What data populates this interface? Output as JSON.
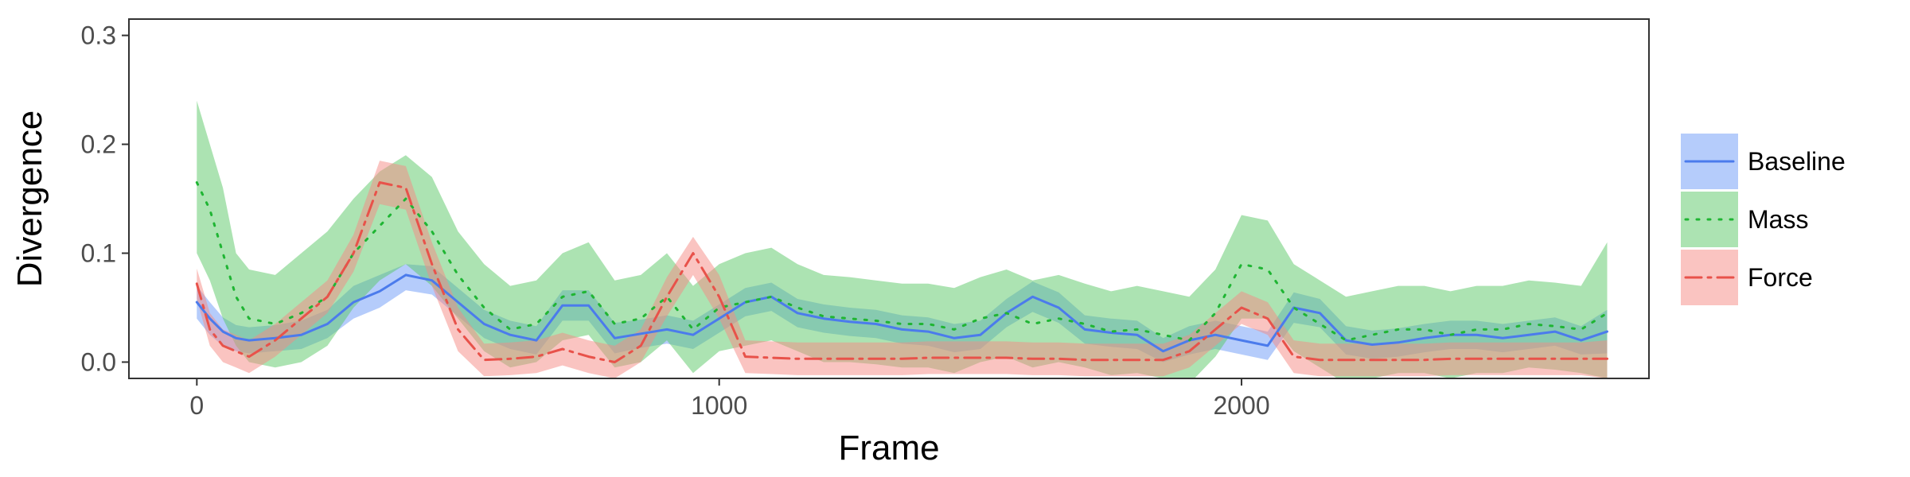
{
  "chart_data": {
    "type": "line",
    "xlabel": "Frame",
    "ylabel": "Divergence",
    "xlim": [
      -130,
      2780
    ],
    "ylim": [
      -0.015,
      0.315
    ],
    "x_ticks": [
      0,
      1000,
      2000
    ],
    "x_tick_labels": [
      "0",
      "1000",
      "2000"
    ],
    "y_ticks": [
      0.0,
      0.1,
      0.2,
      0.3
    ],
    "y_tick_labels": [
      "0.0",
      "0.1",
      "0.2",
      "0.3"
    ],
    "grid": false,
    "legend_position": "right",
    "x": [
      0,
      25,
      50,
      75,
      100,
      150,
      200,
      250,
      300,
      350,
      400,
      450,
      500,
      550,
      600,
      650,
      700,
      750,
      800,
      850,
      900,
      950,
      1000,
      1050,
      1100,
      1150,
      1200,
      1250,
      1300,
      1350,
      1400,
      1450,
      1500,
      1550,
      1600,
      1650,
      1700,
      1750,
      1800,
      1850,
      1900,
      1950,
      2000,
      2050,
      2100,
      2150,
      2200,
      2250,
      2300,
      2350,
      2400,
      2450,
      2500,
      2550,
      2600,
      2650,
      2700
    ],
    "series": [
      {
        "name": "Baseline",
        "color": "#4b7bec",
        "band_color": "#6c99f7",
        "line_style": "solid",
        "values": [
          0.055,
          0.04,
          0.028,
          0.022,
          0.02,
          0.022,
          0.025,
          0.035,
          0.055,
          0.065,
          0.08,
          0.075,
          0.055,
          0.035,
          0.025,
          0.02,
          0.052,
          0.052,
          0.022,
          0.026,
          0.03,
          0.025,
          0.04,
          0.055,
          0.06,
          0.045,
          0.04,
          0.037,
          0.035,
          0.03,
          0.028,
          0.022,
          0.025,
          0.045,
          0.06,
          0.05,
          0.03,
          0.027,
          0.025,
          0.01,
          0.02,
          0.025,
          0.02,
          0.015,
          0.05,
          0.045,
          0.02,
          0.016,
          0.018,
          0.022,
          0.025,
          0.025,
          0.022,
          0.025,
          0.028,
          0.02,
          0.028
        ],
        "lower": [
          0.04,
          0.025,
          0.015,
          0.01,
          0.008,
          0.01,
          0.012,
          0.022,
          0.04,
          0.05,
          0.066,
          0.062,
          0.042,
          0.022,
          0.012,
          0.007,
          0.038,
          0.038,
          0.008,
          0.013,
          0.017,
          0.012,
          0.027,
          0.042,
          0.047,
          0.032,
          0.027,
          0.024,
          0.022,
          0.017,
          0.015,
          0.009,
          0.012,
          0.032,
          0.046,
          0.036,
          0.017,
          0.014,
          0.012,
          0.0,
          0.007,
          0.012,
          0.007,
          0.002,
          0.036,
          0.032,
          0.007,
          0.003,
          0.005,
          0.009,
          0.012,
          0.012,
          0.009,
          0.012,
          0.015,
          0.007,
          0.008
        ],
        "upper": [
          0.07,
          0.055,
          0.041,
          0.034,
          0.032,
          0.034,
          0.038,
          0.048,
          0.07,
          0.08,
          0.09,
          0.088,
          0.068,
          0.048,
          0.038,
          0.033,
          0.066,
          0.066,
          0.036,
          0.039,
          0.043,
          0.038,
          0.053,
          0.068,
          0.073,
          0.058,
          0.053,
          0.05,
          0.048,
          0.043,
          0.041,
          0.035,
          0.038,
          0.058,
          0.074,
          0.064,
          0.043,
          0.04,
          0.038,
          0.022,
          0.033,
          0.038,
          0.033,
          0.028,
          0.064,
          0.058,
          0.033,
          0.029,
          0.031,
          0.035,
          0.038,
          0.038,
          0.035,
          0.038,
          0.041,
          0.033,
          0.048
        ]
      },
      {
        "name": "Mass",
        "color": "#1fb533",
        "band_color": "#59c765",
        "line_style": "dotted",
        "values": [
          0.165,
          0.14,
          0.1,
          0.06,
          0.04,
          0.035,
          0.045,
          0.06,
          0.1,
          0.125,
          0.15,
          0.12,
          0.08,
          0.05,
          0.03,
          0.035,
          0.06,
          0.065,
          0.035,
          0.04,
          0.06,
          0.03,
          0.05,
          0.055,
          0.06,
          0.05,
          0.042,
          0.04,
          0.038,
          0.035,
          0.035,
          0.03,
          0.04,
          0.045,
          0.035,
          0.04,
          0.035,
          0.028,
          0.03,
          0.025,
          0.02,
          0.045,
          0.09,
          0.085,
          0.05,
          0.035,
          0.02,
          0.025,
          0.03,
          0.03,
          0.025,
          0.03,
          0.03,
          0.035,
          0.033,
          0.03,
          0.045
        ],
        "lower": [
          0.1,
          0.075,
          0.04,
          0.015,
          0.0,
          -0.005,
          0.0,
          0.015,
          0.05,
          0.075,
          0.09,
          0.07,
          0.04,
          0.01,
          -0.005,
          0.0,
          0.02,
          0.025,
          -0.005,
          0.0,
          0.02,
          -0.01,
          0.01,
          0.015,
          0.02,
          0.01,
          0.0,
          0.0,
          -0.002,
          -0.005,
          -0.005,
          -0.01,
          0.0,
          0.005,
          -0.005,
          0.0,
          -0.005,
          -0.012,
          -0.01,
          -0.015,
          -0.02,
          0.005,
          0.04,
          0.04,
          0.01,
          -0.005,
          -0.02,
          -0.015,
          -0.01,
          -0.01,
          -0.015,
          -0.01,
          -0.01,
          -0.005,
          -0.007,
          -0.01,
          -0.015
        ],
        "upper": [
          0.24,
          0.2,
          0.16,
          0.1,
          0.085,
          0.08,
          0.1,
          0.12,
          0.15,
          0.175,
          0.19,
          0.17,
          0.12,
          0.09,
          0.07,
          0.075,
          0.1,
          0.11,
          0.075,
          0.08,
          0.1,
          0.07,
          0.09,
          0.1,
          0.105,
          0.09,
          0.08,
          0.078,
          0.075,
          0.072,
          0.072,
          0.068,
          0.078,
          0.085,
          0.075,
          0.08,
          0.072,
          0.065,
          0.07,
          0.065,
          0.06,
          0.085,
          0.135,
          0.13,
          0.09,
          0.075,
          0.06,
          0.065,
          0.07,
          0.07,
          0.065,
          0.07,
          0.07,
          0.075,
          0.073,
          0.07,
          0.11
        ]
      },
      {
        "name": "Force",
        "color": "#e8524a",
        "band_color": "#f58a84",
        "line_style": "dashdot",
        "values": [
          0.072,
          0.03,
          0.015,
          0.01,
          0.005,
          0.02,
          0.04,
          0.06,
          0.1,
          0.165,
          0.16,
          0.09,
          0.03,
          0.002,
          0.003,
          0.005,
          0.012,
          0.005,
          0.0,
          0.015,
          0.06,
          0.1,
          0.06,
          0.005,
          0.004,
          0.003,
          0.003,
          0.003,
          0.003,
          0.003,
          0.004,
          0.004,
          0.004,
          0.004,
          0.003,
          0.003,
          0.002,
          0.002,
          0.002,
          0.002,
          0.01,
          0.03,
          0.05,
          0.04,
          0.005,
          0.002,
          0.002,
          0.002,
          0.002,
          0.002,
          0.003,
          0.003,
          0.003,
          0.003,
          0.003,
          0.003,
          0.003
        ],
        "lower": [
          0.058,
          0.015,
          0.0,
          -0.005,
          -0.01,
          0.005,
          0.025,
          0.045,
          0.083,
          0.145,
          0.14,
          0.07,
          0.01,
          -0.013,
          -0.012,
          -0.01,
          -0.003,
          -0.01,
          -0.015,
          0.0,
          0.042,
          0.08,
          0.04,
          -0.01,
          -0.011,
          -0.012,
          -0.012,
          -0.012,
          -0.012,
          -0.012,
          -0.011,
          -0.011,
          -0.011,
          -0.011,
          -0.012,
          -0.012,
          -0.013,
          -0.013,
          -0.013,
          -0.013,
          -0.005,
          0.015,
          0.035,
          0.025,
          -0.01,
          -0.013,
          -0.013,
          -0.013,
          -0.013,
          -0.013,
          -0.012,
          -0.012,
          -0.012,
          -0.012,
          -0.012,
          -0.012,
          -0.015
        ],
        "upper": [
          0.086,
          0.045,
          0.03,
          0.025,
          0.02,
          0.035,
          0.055,
          0.075,
          0.117,
          0.185,
          0.18,
          0.11,
          0.05,
          0.017,
          0.018,
          0.02,
          0.027,
          0.02,
          0.015,
          0.03,
          0.078,
          0.115,
          0.08,
          0.02,
          0.019,
          0.018,
          0.018,
          0.018,
          0.018,
          0.018,
          0.019,
          0.019,
          0.019,
          0.019,
          0.018,
          0.018,
          0.017,
          0.017,
          0.017,
          0.017,
          0.025,
          0.045,
          0.065,
          0.055,
          0.02,
          0.017,
          0.017,
          0.017,
          0.017,
          0.017,
          0.018,
          0.018,
          0.018,
          0.018,
          0.018,
          0.018,
          0.02
        ]
      }
    ]
  }
}
